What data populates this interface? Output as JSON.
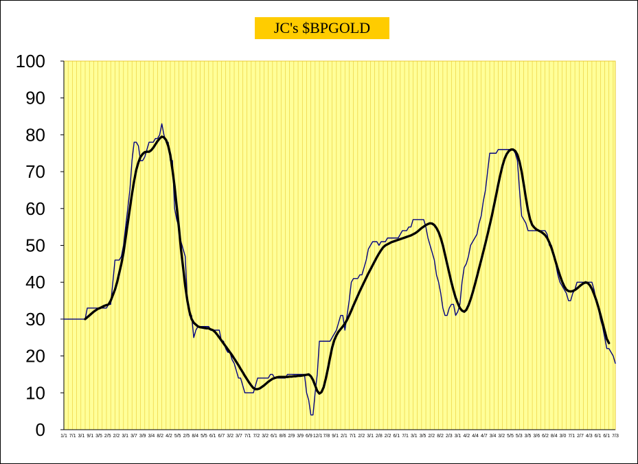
{
  "chart_data": {
    "type": "line",
    "title": "JC's $BPGOLD",
    "xlabel": "",
    "ylabel": "",
    "ylim": [
      0,
      100
    ],
    "yticks": [
      0,
      10,
      20,
      30,
      40,
      50,
      60,
      70,
      80,
      90,
      100
    ],
    "grid": "vertical lines",
    "colors": {
      "plot_bg": "#ffff99",
      "grid": "#e8c832",
      "title_bg": "#ffcc00",
      "raw": "#000080",
      "smooth": "#000000"
    },
    "x_tick_labels_note": "dense overlapping date labels (illegible)",
    "x_tick_labels": [
      "1/1",
      "7/1",
      "3/1",
      "9/1",
      "3/5",
      "2/5",
      "2/2",
      "3/1",
      "3/7",
      "3/9",
      "3/4",
      "8/2",
      "4/2",
      "5/5",
      "2/5",
      "8/4",
      "5/5",
      "6/1",
      "6/7",
      "3/2",
      "3/7",
      "7/1",
      "7/2",
      "3/2",
      "6/1",
      "8/6",
      "2/9",
      "3/9",
      "6/9",
      "12/1",
      "7/8",
      "9/1",
      "2/1",
      "7/1",
      "2/2",
      "3/1",
      "2/8",
      "2/2",
      "6/1",
      "7/1",
      "3/1",
      "3/5",
      "2/2",
      "8/2",
      "2/3",
      "3/1",
      "4/2",
      "4/4",
      "4/7",
      "3/4",
      "3/2",
      "5/5",
      "5/3",
      "3/5",
      "3/6",
      "6/2",
      "8/4",
      "3/0",
      "7/1",
      "2/7",
      "4/3",
      "6/1",
      "6/1",
      "7/3"
    ],
    "series": [
      {
        "style": "thin",
        "y": [
          30,
          30,
          30,
          30,
          30,
          30,
          30,
          30,
          30,
          30,
          30,
          33,
          33,
          33,
          33,
          33,
          33,
          33,
          33,
          33,
          33,
          34,
          34,
          40,
          46,
          46,
          46,
          47,
          50,
          55,
          60,
          65,
          73,
          78,
          78,
          77,
          73,
          73,
          74,
          76,
          78,
          78,
          78,
          79,
          79,
          80,
          83,
          80,
          78,
          78,
          73,
          73,
          60,
          57,
          55,
          51,
          49,
          47,
          35,
          31,
          31,
          25,
          27,
          28,
          28,
          28,
          28,
          28,
          28,
          27,
          27,
          27,
          27,
          27,
          24,
          24,
          22,
          21,
          21,
          19,
          18,
          16,
          14,
          14,
          12,
          10,
          10,
          10,
          10,
          10,
          12,
          14,
          14,
          14,
          14,
          14,
          14,
          15,
          15,
          14,
          14,
          14,
          14,
          14,
          14,
          15,
          15,
          15,
          15,
          15,
          15,
          15,
          15,
          15,
          10,
          8,
          4,
          4,
          10,
          15,
          24,
          24,
          24,
          24,
          24,
          24,
          25,
          26,
          27,
          29,
          31,
          31,
          27,
          31,
          35,
          40,
          41,
          41,
          41,
          42,
          42,
          44,
          46,
          49,
          50,
          51,
          51,
          51,
          50,
          51,
          51,
          51,
          52,
          52,
          52,
          52,
          52,
          52,
          53,
          54,
          54,
          54,
          55,
          55,
          57,
          57,
          57,
          57,
          57,
          57,
          55,
          52,
          50,
          48,
          46,
          42,
          40,
          37,
          33,
          31,
          31,
          33,
          34,
          34,
          31,
          32,
          34,
          40,
          44,
          45,
          47,
          50,
          51,
          52,
          53,
          56,
          58,
          62,
          65,
          70,
          75,
          75,
          75,
          75,
          76,
          76,
          76,
          76,
          76,
          76,
          76,
          76,
          75,
          73,
          65,
          58,
          57,
          56,
          54,
          54,
          54,
          54,
          54,
          54,
          54,
          54,
          54,
          53,
          50,
          50,
          48,
          45,
          42,
          40,
          39,
          38,
          37,
          35,
          35,
          37,
          38,
          40,
          40,
          40,
          40,
          40,
          40,
          40,
          40,
          38,
          35,
          33,
          30,
          28,
          25,
          22,
          22,
          21,
          20,
          18
        ]
      },
      {
        "style": "thick",
        "y": [
          null,
          null,
          null,
          null,
          null,
          null,
          null,
          null,
          null,
          null,
          30,
          30.5,
          31,
          31.5,
          32,
          32.4,
          32.8,
          33,
          33.3,
          33.6,
          33.8,
          34,
          35,
          36.5,
          38,
          40,
          42.5,
          45,
          48,
          52,
          56,
          60,
          64,
          67.5,
          70.5,
          72.5,
          74,
          74.8,
          75.3,
          75.4,
          75.4,
          75.8,
          76.5,
          77.4,
          78.3,
          79,
          79.5,
          79.3,
          78.6,
          77,
          74.5,
          70.5,
          66,
          60.5,
          55,
          49,
          44,
          39,
          35,
          32,
          30,
          29,
          28.5,
          28,
          27.8,
          27.7,
          27.6,
          27.5,
          27.5,
          27.2,
          27,
          26.5,
          25.8,
          25,
          24.2,
          23.4,
          22.6,
          21.8,
          21,
          20.2,
          19.3,
          18.4,
          17.5,
          16.5,
          15.6,
          14.6,
          13.7,
          12.8,
          12,
          11.3,
          11,
          11,
          11.2,
          11.6,
          12,
          12.5,
          13,
          13.4,
          13.8,
          14,
          14.2,
          14.3,
          14.3,
          14.3,
          14.3,
          14.3,
          14.4,
          14.4,
          14.5,
          14.5,
          14.6,
          14.6,
          14.7,
          14.8,
          14.9,
          15,
          14.5,
          13.5,
          12,
          10.5,
          9.8,
          10.2,
          11.5,
          13.8,
          16.5,
          19.5,
          22.3,
          24.3,
          25.6,
          26.6,
          27.3,
          28,
          28.8,
          29.8,
          31,
          32.3,
          33.7,
          35,
          36.3,
          37.6,
          38.8,
          40,
          41.2,
          42.4,
          43.5,
          44.6,
          45.7,
          46.8,
          47.8,
          48.7,
          49.5,
          50,
          50.3,
          50.6,
          50.9,
          51.1,
          51.3,
          51.5,
          51.7,
          51.9,
          52.1,
          52.3,
          52.5,
          52.7,
          53,
          53.3,
          53.7,
          54.2,
          54.7,
          55.1,
          55.5,
          55.8,
          56,
          55.9,
          55.5,
          54.7,
          53.6,
          52,
          50,
          47.5,
          45,
          42.5,
          40,
          37.8,
          35.8,
          34.3,
          33,
          32.3,
          32,
          32.5,
          33.7,
          35.3,
          37.2,
          39.3,
          41.5,
          43.8,
          46,
          48.3,
          50.6,
          53,
          55.5,
          58,
          60.8,
          63.6,
          66.5,
          69.2,
          71.6,
          73.5,
          74.8,
          75.6,
          76,
          76,
          75.6,
          74.6,
          72.7,
          70,
          66.5,
          62.8,
          59.5,
          57,
          55.5,
          54.8,
          54.3,
          54,
          53.7,
          53.3,
          52.8,
          52,
          50.8,
          49.3,
          47.5,
          45.5,
          43.6,
          41.8,
          40.2,
          38.9,
          38,
          37.6,
          37.5,
          37.6,
          37.9,
          38.3,
          38.8,
          39.3,
          39.7,
          40,
          39.8,
          39.2,
          38.2,
          36.8,
          35.2,
          33.3,
          31.2,
          29,
          26.8,
          24.6,
          23.5
        ]
      }
    ]
  }
}
